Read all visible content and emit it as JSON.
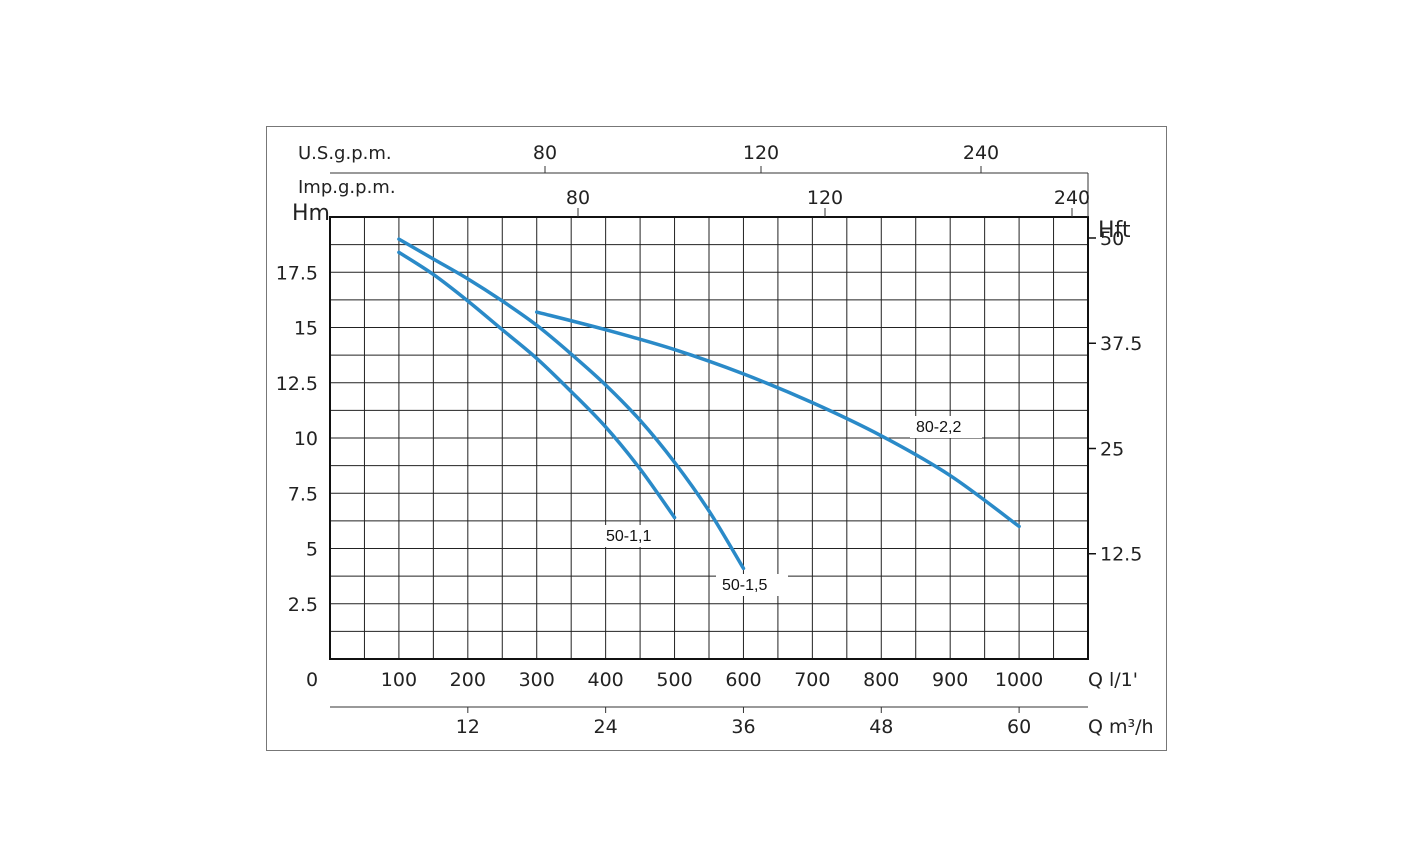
{
  "chart_data": {
    "type": "line",
    "title": "",
    "ylabel_left": "Hm",
    "ylabel_right": "Hft",
    "xlabel_bottom": "Q l/1'",
    "xlabel_secondary": "Q m³/h",
    "top_axis_1_label": "U.S.g.p.m.",
    "top_axis_2_label": "Imp.g.p.m.",
    "xlim": [
      0,
      1100
    ],
    "ylim": [
      0,
      20
    ],
    "grid": true,
    "x_ticks": [
      "0",
      "100",
      "200",
      "300",
      "400",
      "500",
      "600",
      "700",
      "800",
      "900",
      "1000"
    ],
    "y_ticks_left": [
      "2.5",
      "5",
      "7.5",
      "10",
      "12.5",
      "15",
      "17.5"
    ],
    "y_ticks_right": [
      "12.5",
      "25",
      "37.5",
      "50"
    ],
    "secondary_x_ticks": [
      "12",
      "24",
      "36",
      "48",
      "60"
    ],
    "top_axis_1_ticks": [
      "80",
      "120",
      "240"
    ],
    "top_axis_2_ticks": [
      "80",
      "120",
      "240"
    ],
    "series": [
      {
        "name": "50-1,1",
        "x": [
          100,
          150,
          200,
          250,
          300,
          350,
          400,
          450,
          500
        ],
        "y": [
          18.4,
          17.4,
          16.2,
          14.9,
          13.6,
          12.1,
          10.5,
          8.6,
          6.4
        ]
      },
      {
        "name": "50-1,5",
        "x": [
          100,
          150,
          200,
          250,
          300,
          350,
          400,
          450,
          500,
          550,
          600
        ],
        "y": [
          19.0,
          18.1,
          17.2,
          16.2,
          15.1,
          13.8,
          12.4,
          10.8,
          8.9,
          6.7,
          4.1
        ]
      },
      {
        "name": "80-2,2",
        "x": [
          300,
          400,
          500,
          600,
          700,
          800,
          900,
          1000
        ],
        "y": [
          15.7,
          14.9,
          14.0,
          12.9,
          11.6,
          10.1,
          8.3,
          6.0
        ]
      }
    ],
    "color": "#2a8ac8"
  }
}
